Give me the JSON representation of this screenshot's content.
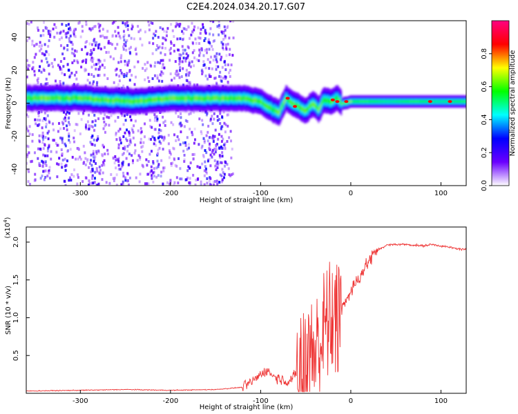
{
  "title": "C2E4.2024.034.20.17.G07",
  "chart_data": [
    {
      "type": "heatmap",
      "xlabel": "Height of straight line (km)",
      "ylabel": "Frequency (Hz)",
      "xlim": [
        -360,
        128
      ],
      "ylim": [
        -50,
        50
      ],
      "xticks": [
        -300,
        -200,
        -100,
        0,
        100
      ],
      "yticks": [
        -40,
        -20,
        0,
        20,
        40
      ],
      "colorbar": {
        "label": "Normalized spectral amplitude",
        "range": [
          0.0,
          1.0
        ],
        "ticks": [
          "0.0",
          "0.2",
          "0.4",
          "0.6",
          "0.8"
        ],
        "colormap": [
          "#ffffff",
          "#6a00ff",
          "#0000ff",
          "#00ffff",
          "#00ff00",
          "#ffff00",
          "#ff0000",
          "#ff0080"
        ]
      },
      "ridge": {
        "x": [
          -355,
          -330,
          -300,
          -270,
          -240,
          -200,
          -170,
          -140,
          -120,
          -100,
          -90,
          -80,
          -72,
          -65,
          -58,
          -50,
          -42,
          -36,
          -30,
          -22,
          -15,
          -10,
          -5,
          0,
          30,
          60,
          90,
          128
        ],
        "freq": [
          3,
          3,
          3,
          2,
          1,
          3,
          3,
          3,
          3,
          1,
          -3,
          -6,
          3,
          0,
          -2,
          -5,
          0,
          -4,
          2,
          1,
          3,
          0,
          0,
          1,
          1,
          1,
          1,
          1
        ]
      }
    },
    {
      "type": "line",
      "xlabel": "Height of straight line (km)",
      "ylabel": "SNR (10 * v/v)",
      "y_multiplier": "(x10",
      "y_exponent": "4",
      "xlim": [
        -360,
        128
      ],
      "ylim": [
        0,
        2.2
      ],
      "xticks": [
        -300,
        -200,
        -100,
        0,
        100
      ],
      "yticks": [
        "0.5",
        "1.0",
        "1.5",
        "2.0"
      ],
      "color": "#ee3333",
      "x": [
        -360,
        -300,
        -250,
        -200,
        -150,
        -120,
        -110,
        -100,
        -95,
        -90,
        -85,
        -80,
        -75,
        -70,
        -65,
        -60,
        -55,
        -50,
        -45,
        -40,
        -35,
        -30,
        -25,
        -20,
        -15,
        -10,
        -5,
        0,
        10,
        20,
        30,
        40,
        50,
        60,
        70,
        80,
        90,
        100,
        110,
        120,
        128
      ],
      "y": [
        0.03,
        0.04,
        0.05,
        0.04,
        0.05,
        0.08,
        0.15,
        0.25,
        0.3,
        0.28,
        0.22,
        0.2,
        0.18,
        0.15,
        0.2,
        0.25,
        0.4,
        0.55,
        0.65,
        0.7,
        0.8,
        1.0,
        1.1,
        1.2,
        1.1,
        1.15,
        1.25,
        1.35,
        1.55,
        1.75,
        1.9,
        1.96,
        1.97,
        1.97,
        1.96,
        1.95,
        1.97,
        1.95,
        1.93,
        1.91,
        1.9
      ]
    }
  ]
}
